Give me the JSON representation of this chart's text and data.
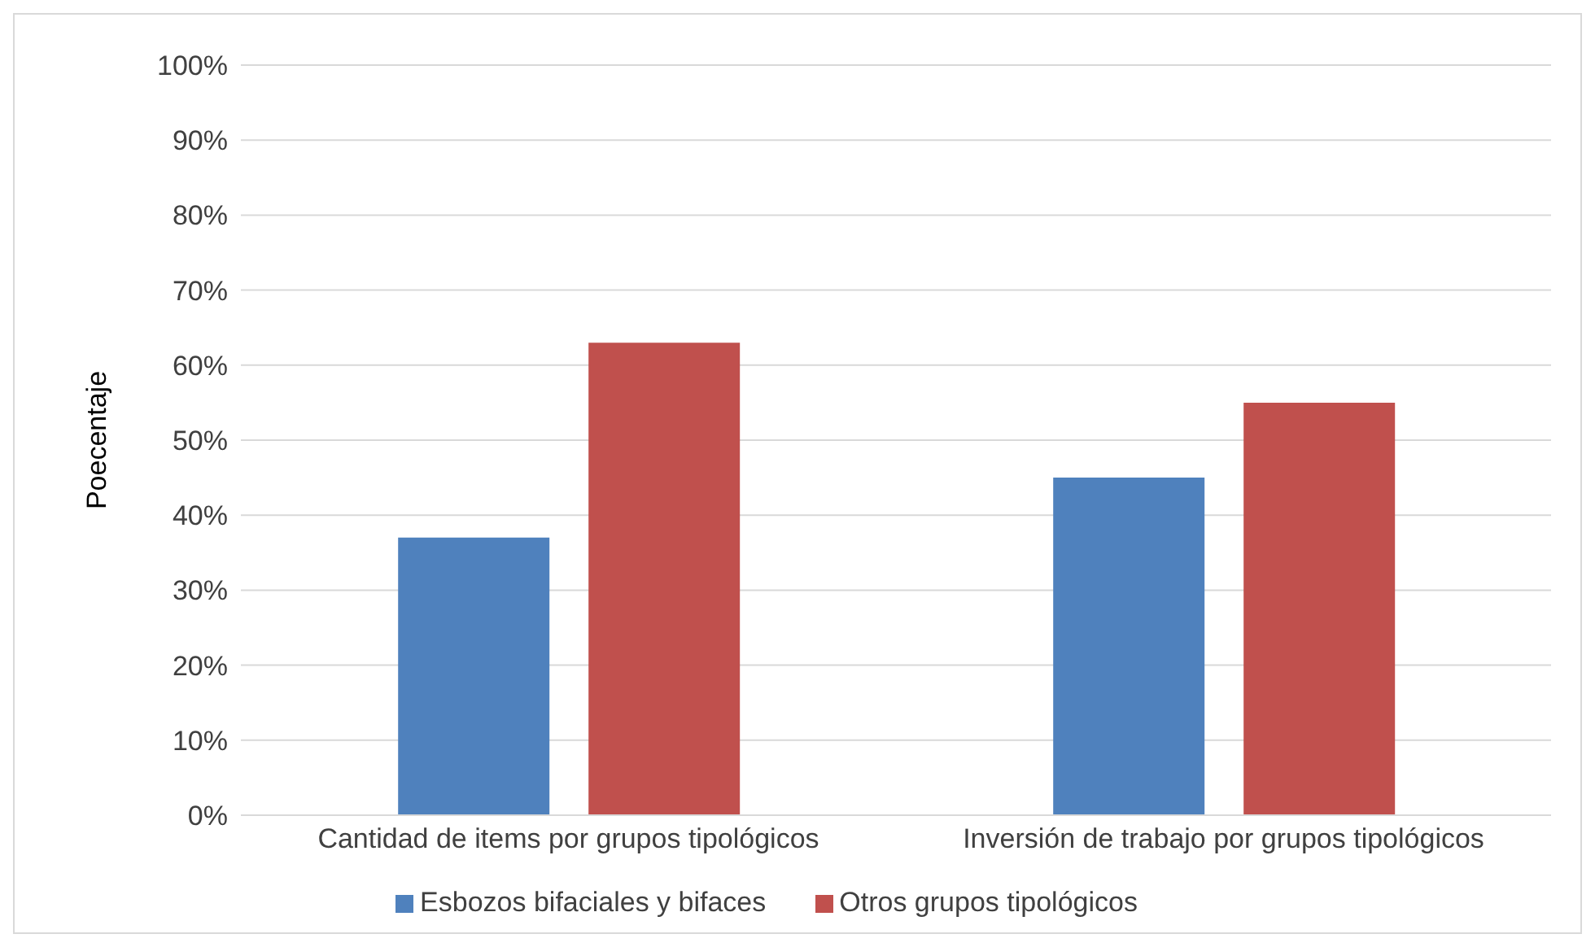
{
  "chart_data": {
    "type": "bar",
    "ylabel": "Poecentaje",
    "categories": [
      "Cantidad de items por grupos tipológicos",
      "Inversión de trabajo por grupos tipológicos"
    ],
    "series": [
      {
        "name": "Esbozos bifaciales y bifaces",
        "color": "#4f81bd",
        "values": [
          37,
          45
        ]
      },
      {
        "name": "Otros grupos tipológicos",
        "color": "#c0504d",
        "values": [
          63,
          55
        ]
      }
    ],
    "ylim": [
      0,
      100
    ],
    "yticks": [
      {
        "value": 0,
        "label": "0%"
      },
      {
        "value": 10,
        "label": "10%"
      },
      {
        "value": 20,
        "label": "20%"
      },
      {
        "value": 30,
        "label": "30%"
      },
      {
        "value": 40,
        "label": "40%"
      },
      {
        "value": 50,
        "label": "50%"
      },
      {
        "value": 60,
        "label": "60%"
      },
      {
        "value": 70,
        "label": "70%"
      },
      {
        "value": 80,
        "label": "80%"
      },
      {
        "value": 90,
        "label": "90%"
      },
      {
        "value": 100,
        "label": "100%"
      }
    ],
    "grid": "y",
    "legend": "bottom"
  }
}
